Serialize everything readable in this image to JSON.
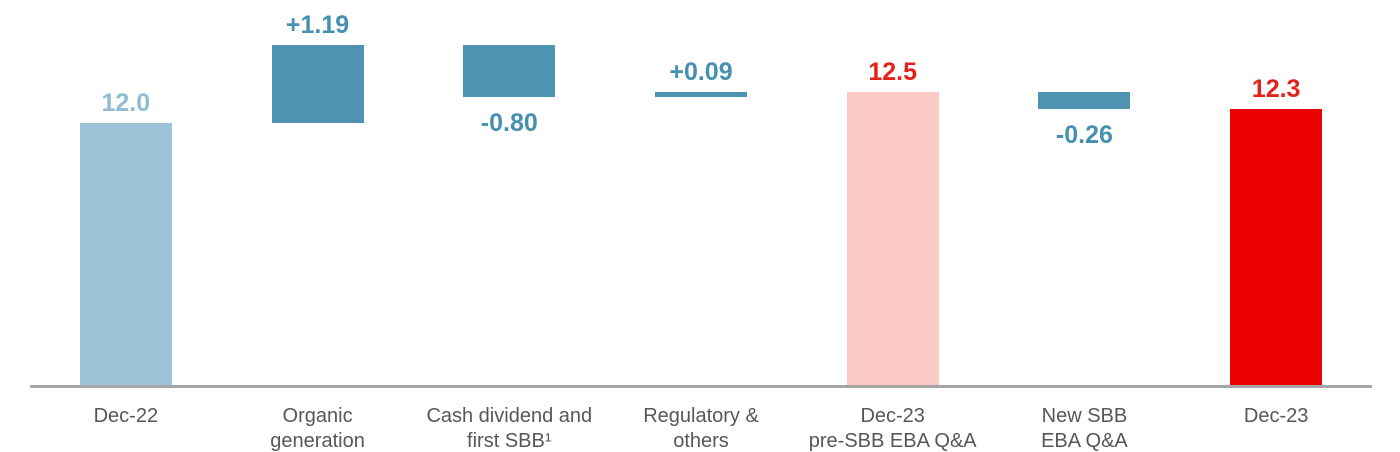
{
  "chart_data": {
    "type": "bar",
    "subtype": "waterfall",
    "title": "",
    "unit": "%",
    "legend": "none",
    "grid": "off",
    "axis_line_color": "#A6A6A6",
    "category_label_color": "#575756",
    "bars": [
      {
        "category_lines": [
          "Dec-22"
        ],
        "value": 12.0,
        "value_label": "12.0",
        "kind": "total",
        "bar_color": "#9CC3D6",
        "label_color": "#8FBCD3",
        "label_position": "above"
      },
      {
        "category_lines": [
          "Organic",
          "generation"
        ],
        "value": 1.19,
        "value_label": "+1.19",
        "kind": "delta",
        "bar_color": "#4E93B2",
        "label_color": "#4690B0",
        "label_position": "above"
      },
      {
        "category_lines": [
          "Cash dividend and",
          "first SBB¹"
        ],
        "value": -0.8,
        "value_label": "-0.80",
        "kind": "delta",
        "bar_color": "#4E93B2",
        "label_color": "#4690B0",
        "label_position": "below"
      },
      {
        "category_lines": [
          "Regulatory &",
          "others"
        ],
        "value": 0.09,
        "value_label": "+0.09",
        "kind": "delta",
        "bar_color": "#4E93B2",
        "label_color": "#4690B0",
        "label_position": "above"
      },
      {
        "category_lines": [
          "Dec-23",
          "pre-SBB EBA Q&A"
        ],
        "value": 12.5,
        "value_label": "12.5",
        "kind": "total",
        "bar_color": "#FBCAC6",
        "label_color": "#E2231A",
        "label_position": "above"
      },
      {
        "category_lines": [
          "New SBB",
          "EBA Q&A"
        ],
        "value": -0.26,
        "value_label": "-0.26",
        "kind": "delta",
        "bar_color": "#4E93B2",
        "label_color": "#4690B0",
        "label_position": "below"
      },
      {
        "category_lines": [
          "Dec-23"
        ],
        "value": 12.3,
        "value_label": "12.3",
        "kind": "total",
        "bar_color": "#EC0000",
        "label_color": "#E2231A",
        "label_position": "above"
      }
    ]
  }
}
